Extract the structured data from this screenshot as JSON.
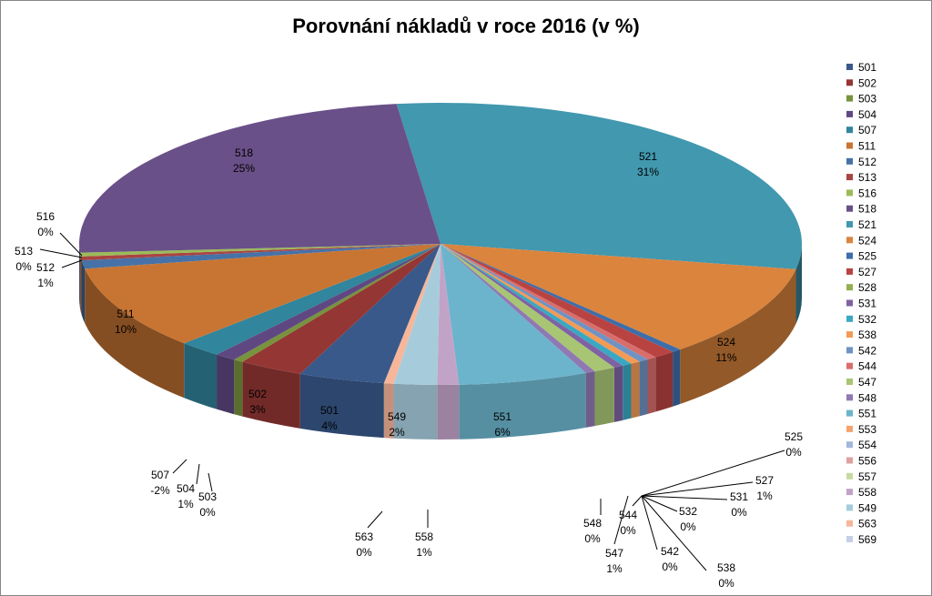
{
  "chart_data": {
    "type": "pie",
    "title": "Porovnání nákladů v roce 2016 (v %)",
    "legend": "right",
    "slices": [
      {
        "name": "521",
        "value": 31,
        "label_value": "31%",
        "color": "#4198AF"
      },
      {
        "name": "524",
        "value": 11,
        "label_value": "11%",
        "color": "#DB843D"
      },
      {
        "name": "525",
        "value": 0,
        "label_value": "0%",
        "color": "#3D6EA9"
      },
      {
        "name": "527",
        "value": 1,
        "label_value": "1%",
        "color": "#B94341"
      },
      {
        "name": "544",
        "value": 0,
        "label_value": "0%",
        "color": "#D86E6C"
      },
      {
        "name": "542",
        "value": 0,
        "label_value": "0%",
        "color": "#6F93C4"
      },
      {
        "name": "538",
        "value": 0,
        "label_value": "0%",
        "color": "#F39A55"
      },
      {
        "name": "532",
        "value": 0,
        "label_value": "0%",
        "color": "#3AA8C2"
      },
      {
        "name": "531",
        "value": 0,
        "label_value": "0%",
        "color": "#7F62A3"
      },
      {
        "name": "547",
        "value": 1,
        "label_value": "1%",
        "color": "#A8C574"
      },
      {
        "name": "548",
        "value": 0,
        "label_value": "0%",
        "color": "#8F79B3"
      },
      {
        "name": "551",
        "value": 6,
        "label_value": "6%",
        "color": "#6CB4CC"
      },
      {
        "name": "558",
        "value": 1,
        "label_value": "1%",
        "color": "#C2A3C8"
      },
      {
        "name": "549",
        "value": 2,
        "label_value": "2%",
        "color": "#A6CCDC"
      },
      {
        "name": "563",
        "value": 0,
        "label_value": "0%",
        "color": "#F7B69A"
      },
      {
        "name": "501",
        "value": 4,
        "label_value": "4%",
        "color": "#38598A"
      },
      {
        "name": "502",
        "value": 3,
        "label_value": "3%",
        "color": "#943634"
      },
      {
        "name": "503",
        "value": 0,
        "label_value": "0%",
        "color": "#77933C"
      },
      {
        "name": "504",
        "value": 1,
        "label_value": "1%",
        "color": "#5F4882"
      },
      {
        "name": "507",
        "value": -2,
        "label_value": "-2%",
        "color": "#31859C"
      },
      {
        "name": "511",
        "value": 10,
        "label_value": "10%",
        "color": "#C87533"
      },
      {
        "name": "512",
        "value": 1,
        "label_value": "1%",
        "color": "#4672A8"
      },
      {
        "name": "513",
        "value": 0,
        "label_value": "0%",
        "color": "#A94442"
      },
      {
        "name": "516",
        "value": 0,
        "label_value": "0%",
        "color": "#9BBB59"
      },
      {
        "name": "518",
        "value": 25,
        "label_value": "25%",
        "color": "#6A5088"
      }
    ],
    "legend_items": [
      {
        "name": "501",
        "color": "#38598A"
      },
      {
        "name": "502",
        "color": "#943634"
      },
      {
        "name": "503",
        "color": "#77933C"
      },
      {
        "name": "504",
        "color": "#5F4882"
      },
      {
        "name": "507",
        "color": "#31859C"
      },
      {
        "name": "511",
        "color": "#C87533"
      },
      {
        "name": "512",
        "color": "#4672A8"
      },
      {
        "name": "513",
        "color": "#A94442"
      },
      {
        "name": "516",
        "color": "#9BBB59"
      },
      {
        "name": "518",
        "color": "#6A5088"
      },
      {
        "name": "521",
        "color": "#4198AF"
      },
      {
        "name": "524",
        "color": "#DB843D"
      },
      {
        "name": "525",
        "color": "#3D6EA9"
      },
      {
        "name": "527",
        "color": "#B94341"
      },
      {
        "name": "528",
        "color": "#92B050"
      },
      {
        "name": "531",
        "color": "#7F62A3"
      },
      {
        "name": "532",
        "color": "#3AA8C2"
      },
      {
        "name": "538",
        "color": "#F39A55"
      },
      {
        "name": "542",
        "color": "#6F93C4"
      },
      {
        "name": "544",
        "color": "#D86E6C"
      },
      {
        "name": "547",
        "color": "#A8C574"
      },
      {
        "name": "548",
        "color": "#8F79B3"
      },
      {
        "name": "551",
        "color": "#6CB4CC"
      },
      {
        "name": "553",
        "color": "#F5A36B"
      },
      {
        "name": "554",
        "color": "#A2B7DB"
      },
      {
        "name": "556",
        "color": "#DDA1A0"
      },
      {
        "name": "557",
        "color": "#C6D9A0"
      },
      {
        "name": "558",
        "color": "#C2A3C8"
      },
      {
        "name": "549",
        "color": "#A6CCDC"
      },
      {
        "name": "563",
        "color": "#F7B69A"
      },
      {
        "name": "569",
        "color": "#C5D0E6"
      }
    ]
  }
}
